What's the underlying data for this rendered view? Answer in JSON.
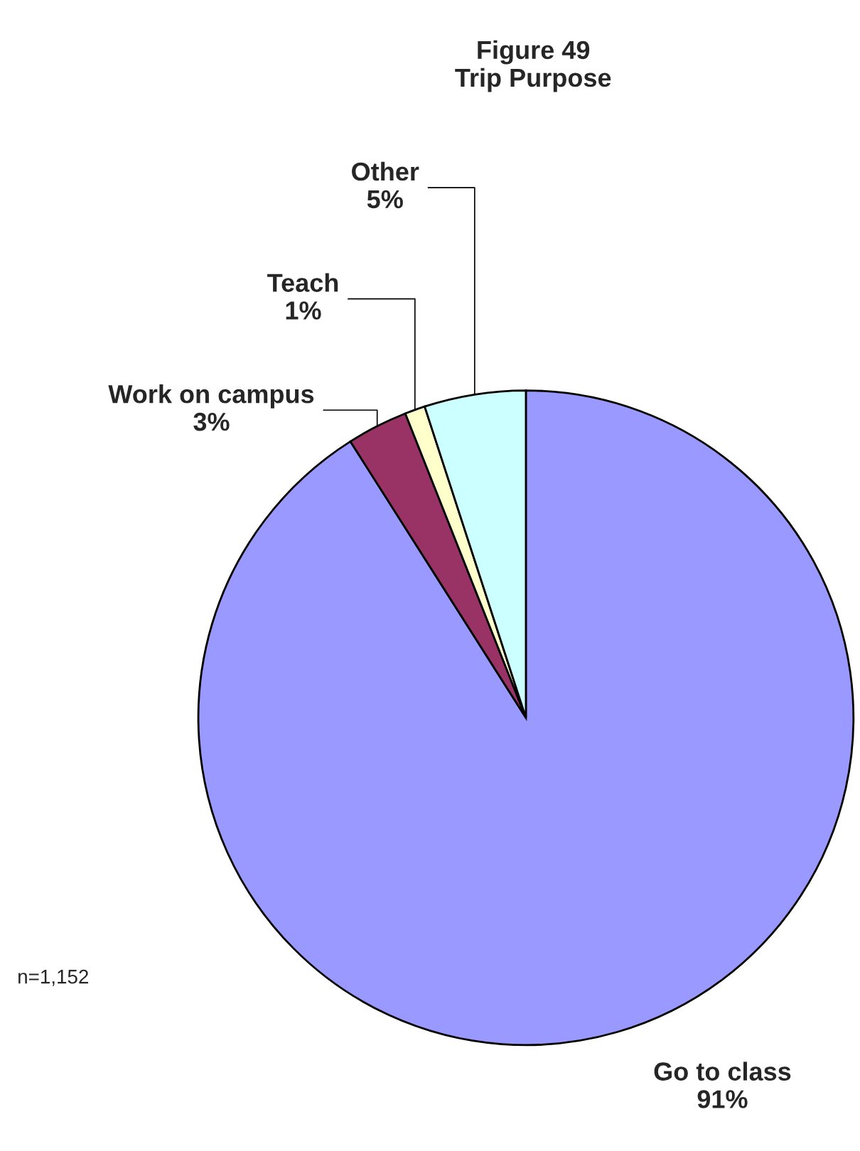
{
  "chart_data": {
    "type": "pie",
    "title": "Figure 49\nTrip Purpose",
    "categories": [
      "Go to class",
      "Work on campus",
      "Teach",
      "Other"
    ],
    "values": [
      91,
      3,
      1,
      5
    ],
    "colors": [
      "#9999ff",
      "#993366",
      "#ffffcc",
      "#ccffff"
    ],
    "value_labels": [
      "91%",
      "3%",
      "1%",
      "5%"
    ],
    "annotations": [
      "n=1,152"
    ]
  }
}
